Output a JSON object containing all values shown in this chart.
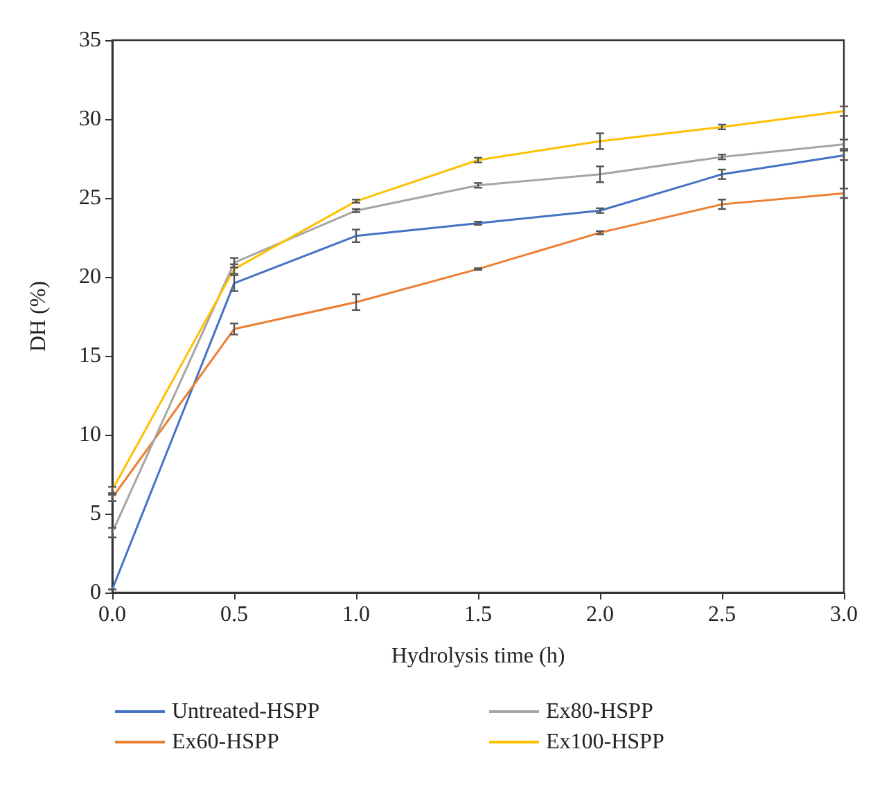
{
  "chart_data": {
    "type": "line",
    "xlabel": "Hydrolysis time (h)",
    "ylabel": "DH (%)",
    "x": [
      0,
      0.5,
      1.0,
      1.5,
      2.0,
      2.5,
      3.0
    ],
    "series": [
      {
        "name": "Untreated-HSPP",
        "color": "#4472c4",
        "values": [
          0.2,
          19.6,
          22.6,
          23.4,
          24.2,
          26.5,
          27.7
        ],
        "errors": [
          null,
          0.5,
          0.4,
          0.1,
          0.15,
          0.3,
          0.3
        ]
      },
      {
        "name": "Ex60-HSPP",
        "color": "#ed7d31",
        "values": [
          6.0,
          16.7,
          18.4,
          20.5,
          22.8,
          24.6,
          25.3
        ],
        "errors": [
          0.2,
          0.35,
          0.5,
          0.05,
          0.1,
          0.3,
          0.3
        ]
      },
      {
        "name": "Ex80-HSPP",
        "color": "#a5a5a5",
        "values": [
          3.8,
          20.9,
          24.2,
          25.8,
          26.5,
          27.6,
          28.4
        ],
        "errors": [
          0.3,
          0.3,
          0.1,
          0.15,
          0.5,
          0.15,
          0.3
        ]
      },
      {
        "name": "Ex100-HSPP",
        "color": "#ffc000",
        "values": [
          6.5,
          20.5,
          24.8,
          27.4,
          28.6,
          29.5,
          30.5
        ],
        "errors": [
          0.2,
          0.3,
          0.1,
          0.15,
          0.5,
          0.15,
          0.3
        ]
      }
    ],
    "xlim": [
      0,
      3.0
    ],
    "xticks": [
      {
        "value": 0,
        "label": "0.0"
      },
      0.5,
      {
        "value": 1,
        "label": "1.0"
      },
      1.5,
      {
        "value": 2,
        "label": "2.0"
      },
      2.5,
      {
        "value": 3,
        "label": "3.0"
      }
    ],
    "ylim": [
      0,
      35
    ],
    "yticks": [
      0,
      5,
      10,
      15,
      20,
      25,
      30,
      35
    ],
    "grid": false,
    "legend": "bottom",
    "marker": "none",
    "line_style": "solid"
  }
}
